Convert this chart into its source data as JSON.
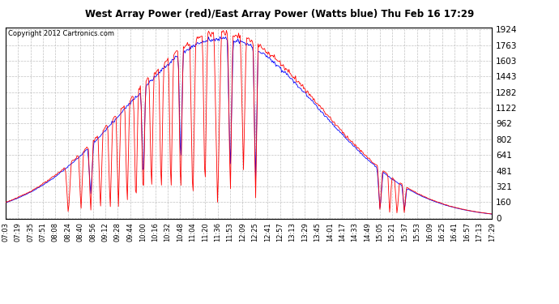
{
  "title": "West Array Power (red)/East Array Power (Watts blue) Thu Feb 16 17:29",
  "copyright": "Copyright 2012 Cartronics.com",
  "background_color": "#ffffff",
  "plot_background": "#ffffff",
  "grid_color": "#aaaaaa",
  "line_color_west": "red",
  "line_color_east": "blue",
  "y_ticks": [
    0.0,
    160.3,
    320.6,
    480.9,
    641.2,
    801.5,
    961.8,
    1122.1,
    1282.4,
    1442.7,
    1603.1,
    1763.4,
    1923.7
  ],
  "ymax": 1923.7,
  "ymin": 0.0,
  "x_labels": [
    "07:03",
    "07:19",
    "07:35",
    "07:51",
    "08:08",
    "08:24",
    "08:40",
    "08:56",
    "09:12",
    "09:28",
    "09:44",
    "10:00",
    "10:16",
    "10:32",
    "10:48",
    "11:04",
    "11:20",
    "11:36",
    "11:53",
    "12:09",
    "12:25",
    "12:41",
    "12:57",
    "13:13",
    "13:29",
    "13:45",
    "14:01",
    "14:17",
    "14:33",
    "14:49",
    "15:05",
    "15:21",
    "15:37",
    "15:53",
    "16:09",
    "16:25",
    "16:41",
    "16:57",
    "17:13",
    "17:29"
  ]
}
